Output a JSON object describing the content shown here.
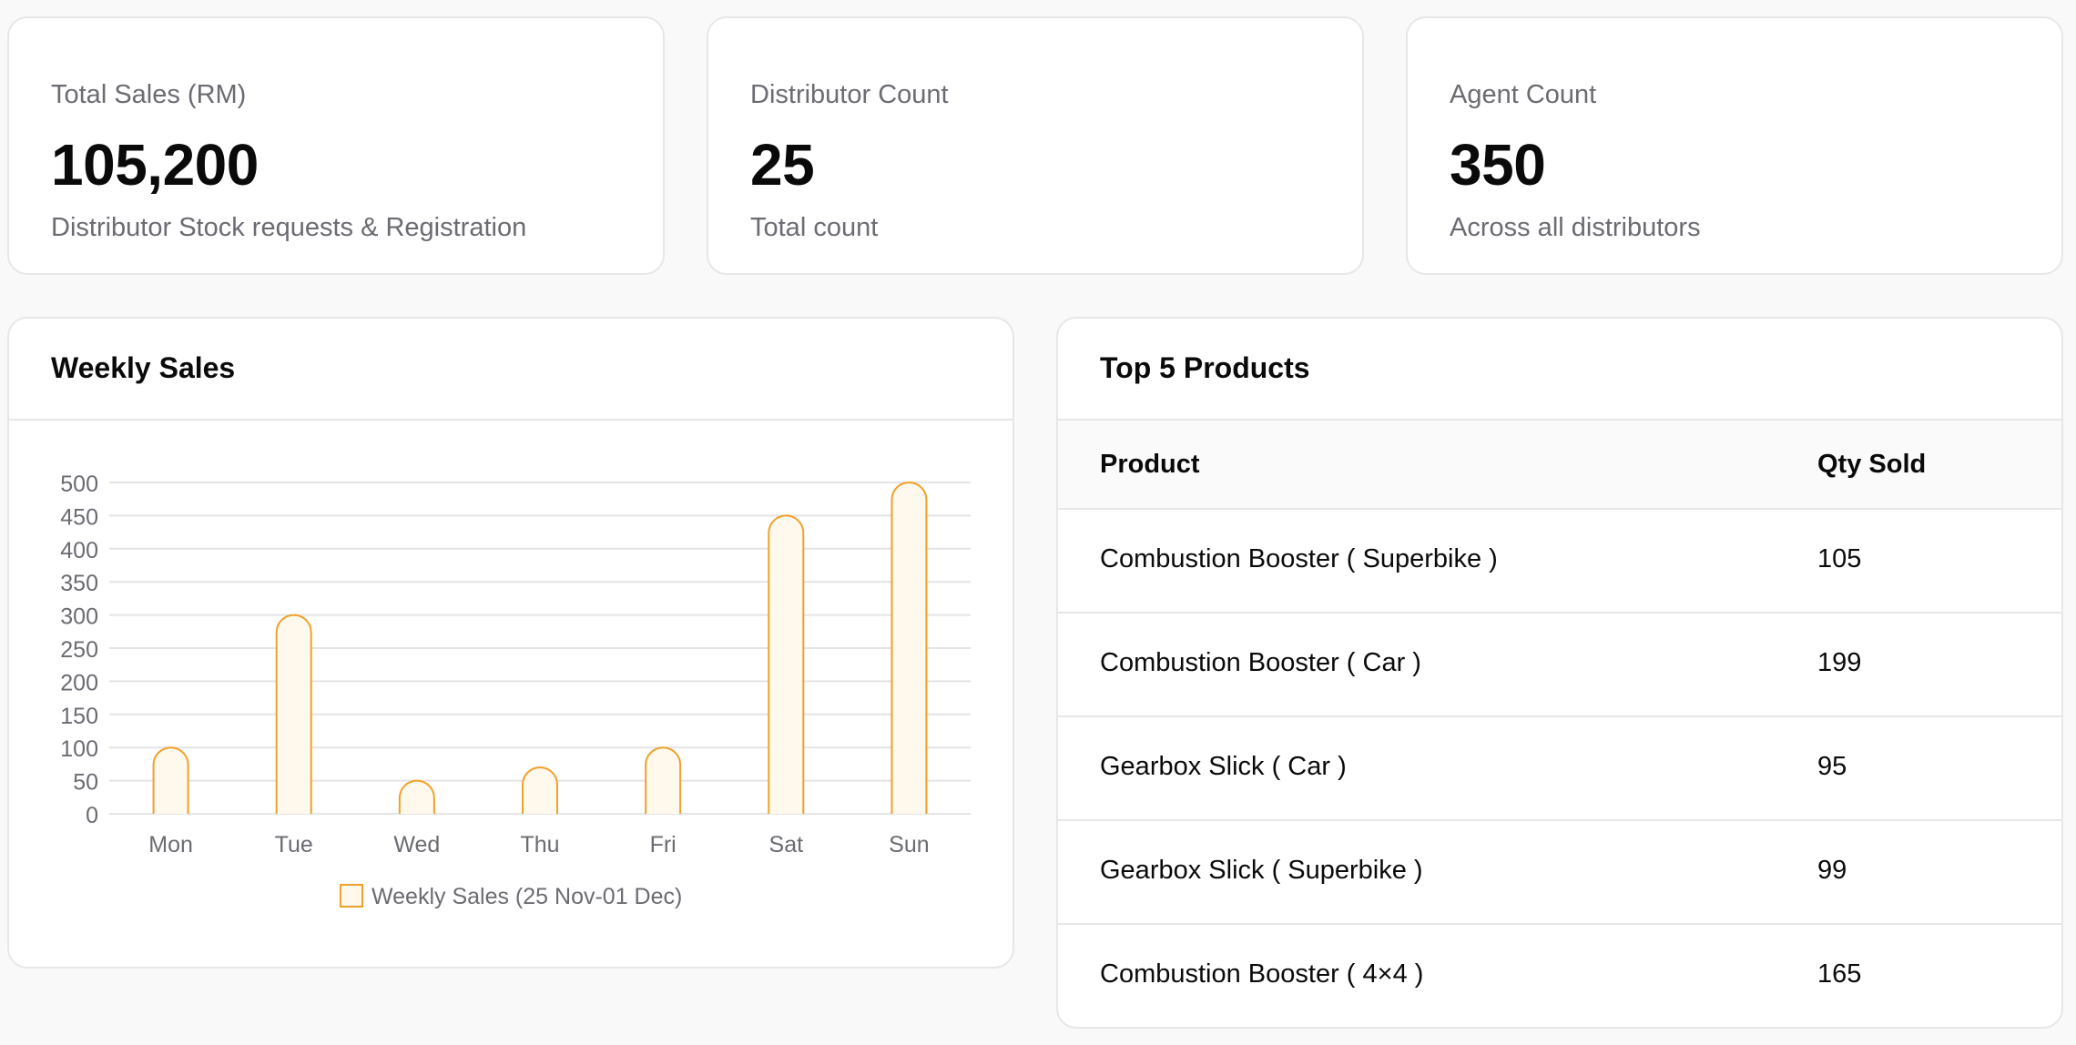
{
  "stats": [
    {
      "label": "Total Sales (RM)",
      "value": "105,200",
      "sub": "Distributor Stock requests & Registration"
    },
    {
      "label": "Distributor Count",
      "value": "25",
      "sub": "Total count"
    },
    {
      "label": "Agent Count",
      "value": "350",
      "sub": "Across all distributors"
    }
  ],
  "weekly_sales": {
    "title": "Weekly Sales"
  },
  "top_products": {
    "title": "Top 5 Products",
    "columns": [
      "Product",
      "Qty Sold"
    ],
    "rows": [
      {
        "product": "Combustion Booster ( Superbike )",
        "qty": "105"
      },
      {
        "product": "Combustion Booster ( Car )",
        "qty": "199"
      },
      {
        "product": "Gearbox Slick ( Car )",
        "qty": "95"
      },
      {
        "product": "Gearbox Slick ( Superbike )",
        "qty": "99"
      },
      {
        "product": "Combustion Booster ( 4×4 )",
        "qty": "165"
      }
    ]
  },
  "chart_data": {
    "type": "bar",
    "categories": [
      "Mon",
      "Tue",
      "Wed",
      "Thu",
      "Fri",
      "Sat",
      "Sun"
    ],
    "series": [
      {
        "name": "Weekly Sales (25 Nov-01 Dec)",
        "values": [
          100,
          300,
          50,
          70,
          100,
          450,
          500
        ]
      }
    ],
    "yticks": [
      "0",
      "50",
      "100",
      "150",
      "200",
      "250",
      "300",
      "350",
      "400",
      "450",
      "500"
    ],
    "ylim": [
      0,
      500
    ],
    "grid": true,
    "legend": "bottom",
    "colors": {
      "bar_fill": "#fef9ec",
      "bar_stroke": "#f0a12a",
      "grid": "#e4e4e7",
      "tick": "#6b6b72"
    }
  }
}
